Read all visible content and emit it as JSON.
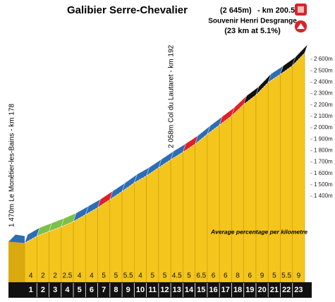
{
  "chart_data": {
    "type": "profile",
    "title": "Galibier Serre-Chevalier",
    "title_altitude": "(2 645m)",
    "title_km": "- km 200.5",
    "subtitle": "Souvenir Henri Desgrange",
    "subtitle2": "(23 km at 5.1%)",
    "start_label": "1 470m Le Monêtier-les-Bains - km 178",
    "pass_label": "2 058m Col du Lautaret - km 192",
    "note": "Average percentage per kilometre",
    "start_elevation": 1470,
    "categories": [
      "1",
      "2",
      "3",
      "4",
      "5",
      "6",
      "7",
      "8",
      "9",
      "10",
      "11",
      "12",
      "13",
      "14",
      "15",
      "16",
      "17",
      "18",
      "19",
      "20",
      "21",
      "22",
      "23"
    ],
    "values": [
      4,
      2,
      2,
      2.5,
      4,
      4,
      5,
      5,
      5.5,
      4,
      5,
      5,
      4.5,
      5,
      6.5,
      6,
      6,
      8,
      6,
      9,
      5,
      5.5,
      9
    ],
    "colors": [
      "#2e6db4",
      "#7cc04a",
      "#7cc04a",
      "#7cc04a",
      "#2e6db4",
      "#2e6db4",
      "#e02027",
      "#2e6db4",
      "#2e6db4",
      "#2e6db4",
      "#2e6db4",
      "#2e6db4",
      "#2e6db4",
      "#e02027",
      "#2e6db4",
      "#2e6db4",
      "#e02027",
      "#e02027",
      "#111111",
      "#111111",
      "#2e6db4",
      "#111111",
      "#111111"
    ],
    "fill_color": "#f4c51c",
    "ylim": [
      1400,
      2600
    ],
    "yticks": [
      {
        "value": 1400,
        "label": "1 400m"
      },
      {
        "value": 1500,
        "label": "1 500m"
      },
      {
        "value": 1600,
        "label": "1 600m"
      },
      {
        "value": 1700,
        "label": "1 700m"
      },
      {
        "value": 1800,
        "label": "1 800m"
      },
      {
        "value": 1900,
        "label": "1 900m"
      },
      {
        "value": 2000,
        "label": "2 000m"
      },
      {
        "value": 2100,
        "label": "2 100m"
      },
      {
        "value": 2200,
        "label": "2 200m"
      },
      {
        "value": 2300,
        "label": "2 300m"
      },
      {
        "value": 2400,
        "label": "2 400m"
      },
      {
        "value": 2500,
        "label": "2 500m"
      },
      {
        "value": 2600,
        "label": "2 600m"
      }
    ]
  }
}
